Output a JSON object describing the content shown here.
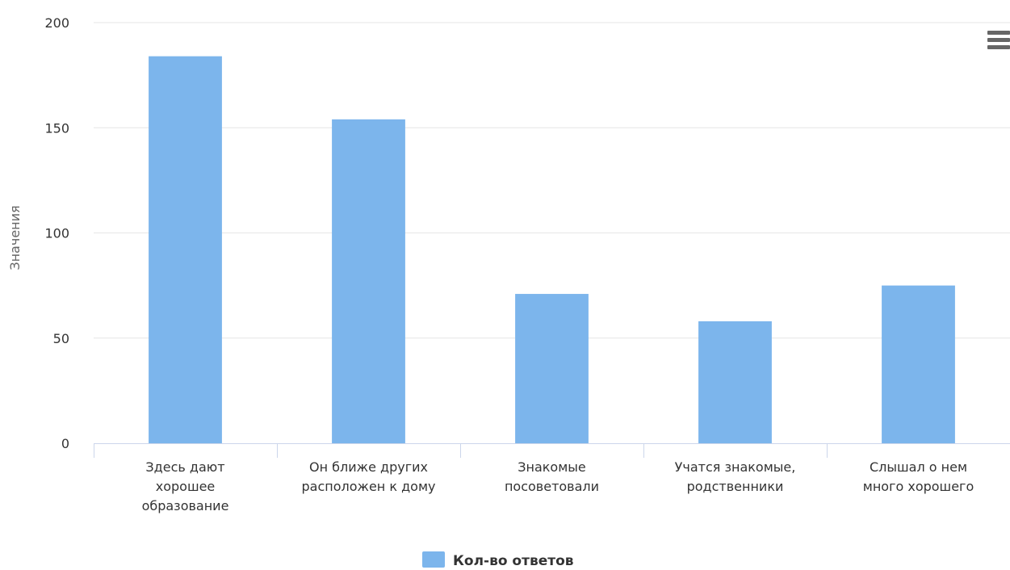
{
  "chart_data": {
    "type": "bar",
    "title": "",
    "xlabel": "",
    "ylabel": "Значения",
    "ylim": [
      0,
      200
    ],
    "yticks": [
      0,
      50,
      100,
      150,
      200
    ],
    "categories": [
      "Здесь дают хорошее образование",
      "Он ближе других расположен к дому",
      "Знакомые посоветовали",
      "Учатся знакомые, родственники",
      "Слышал о нем много хорошего"
    ],
    "category_label_lines": [
      [
        "Здесь дают",
        "хорошее",
        "образование"
      ],
      [
        "Он ближе других",
        "расположен к дому"
      ],
      [
        "Знакомые",
        "посоветовали"
      ],
      [
        "Учатся знакомые,",
        "родственники"
      ],
      [
        "Слышал о нем",
        "много хорошего"
      ]
    ],
    "series": [
      {
        "name": "Кол-во ответов",
        "values": [
          184,
          154,
          71,
          58,
          75
        ],
        "color": "#7cb5ec"
      }
    ],
    "grid": true,
    "legend_position": "bottom-center"
  },
  "colors": {
    "bar": "#7cb5ec",
    "grid": "#e6e6e6",
    "axis": "#ccd6eb",
    "text": "#333333",
    "axis_title": "#666666",
    "menu_icon": "#666666"
  },
  "icons": {
    "export_menu": "hamburger-menu-icon"
  }
}
